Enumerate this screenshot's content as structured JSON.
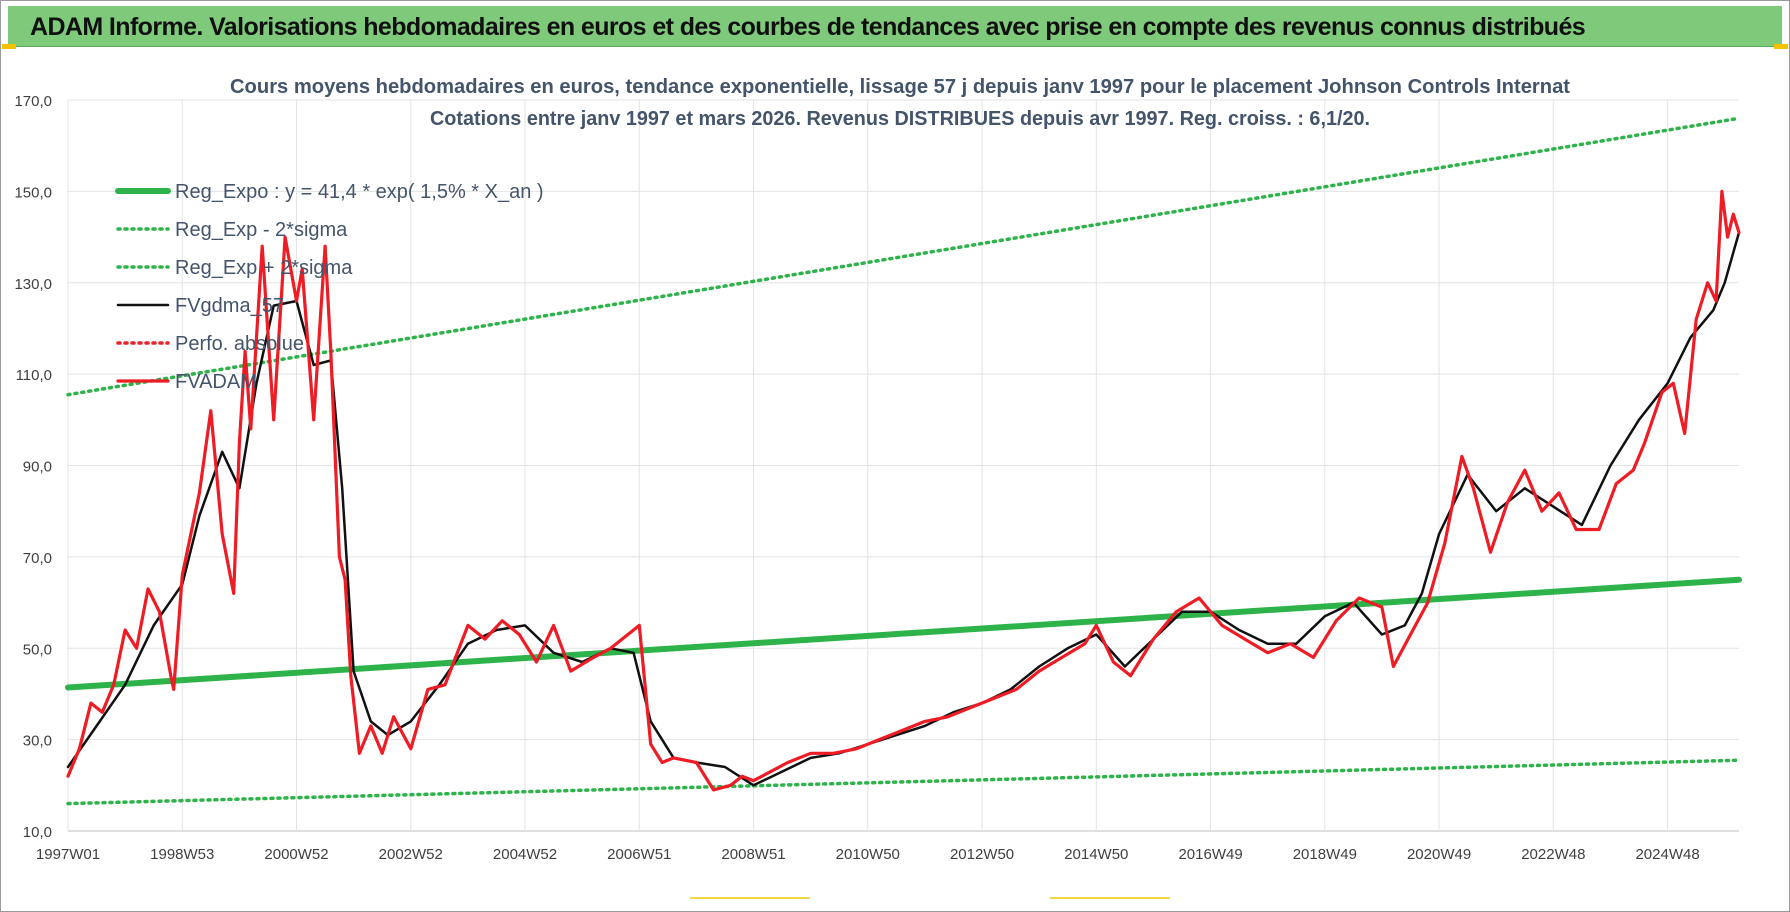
{
  "banner": {
    "title": "ADAM Informe. Valorisations hebdomadaires en euros et des courbes de tendances avec prise en compte des revenus connus distribués"
  },
  "chart_data": {
    "type": "line",
    "title": "Cours moyens hebdomadaires en euros, tendance exponentielle, lissage 57 j depuis janv 1997 pour le placement Johnson Controls Internat",
    "subtitle": "Cotations entre janv 1997 et mars 2026. Revenus DISTRIBUES depuis avr 1997. Reg. croiss. : 6,1/20.",
    "xlabel": "",
    "ylabel": "",
    "ylim": [
      10,
      170
    ],
    "xlim": [
      1997.0,
      2026.25
    ],
    "yticks": [
      "10,0",
      "30,0",
      "50,0",
      "70,0",
      "90,0",
      "110,0",
      "130,0",
      "150,0",
      "170,0"
    ],
    "xticks": [
      {
        "label": "1997W01",
        "x": 1997.0
      },
      {
        "label": "1998W53",
        "x": 1999.0
      },
      {
        "label": "2000W52",
        "x": 2001.0
      },
      {
        "label": "2002W52",
        "x": 2003.0
      },
      {
        "label": "2004W52",
        "x": 2005.0
      },
      {
        "label": "2006W51",
        "x": 2007.0
      },
      {
        "label": "2008W51",
        "x": 2009.0
      },
      {
        "label": "2010W50",
        "x": 2011.0
      },
      {
        "label": "2012W50",
        "x": 2013.0
      },
      {
        "label": "2014W50",
        "x": 2015.0
      },
      {
        "label": "2016W49",
        "x": 2017.0
      },
      {
        "label": "2018W49",
        "x": 2019.0
      },
      {
        "label": "2020W49",
        "x": 2021.0
      },
      {
        "label": "2022W48",
        "x": 2023.0
      },
      {
        "label": "2024W48",
        "x": 2025.0
      }
    ],
    "grid": true,
    "legend_position": "top-left",
    "series": [
      {
        "name": "Reg_Expo : y = 41,4 * exp( 1,5% *  X_an )",
        "color": "#2eb34a",
        "style": "solid-thick",
        "x": [
          1997.0,
          2026.25
        ],
        "y": [
          41.4,
          65.0
        ]
      },
      {
        "name": "Reg_Exp - 2*sigma",
        "color": "#2eb34a",
        "style": "dotted",
        "x": [
          1997.0,
          2026.25
        ],
        "y": [
          16.0,
          25.5
        ]
      },
      {
        "name": "Reg_Exp + 2*sigma",
        "color": "#2eb34a",
        "style": "dotted",
        "x": [
          1997.0,
          2026.25
        ],
        "y": [
          105.5,
          166.0
        ]
      },
      {
        "name": "FVgdma_57",
        "color": "#111111",
        "style": "solid",
        "x": [
          1997.0,
          1997.5,
          1998.0,
          1998.5,
          1999.0,
          1999.3,
          1999.7,
          2000.0,
          2000.3,
          2000.6,
          2001.0,
          2001.3,
          2001.6,
          2001.8,
          2002.0,
          2002.3,
          2002.6,
          2003.0,
          2003.5,
          2004.0,
          2004.5,
          2005.0,
          2005.5,
          2006.0,
          2006.5,
          2006.9,
          2007.2,
          2007.6,
          2008.0,
          2008.5,
          2009.0,
          2009.5,
          2010.0,
          2010.5,
          2011.0,
          2011.5,
          2012.0,
          2012.5,
          2013.0,
          2013.5,
          2014.0,
          2014.5,
          2015.0,
          2015.5,
          2016.0,
          2016.5,
          2017.0,
          2017.5,
          2018.0,
          2018.5,
          2019.0,
          2019.5,
          2020.0,
          2020.4,
          2020.7,
          2021.0,
          2021.5,
          2022.0,
          2022.5,
          2023.0,
          2023.5,
          2024.0,
          2024.5,
          2025.0,
          2025.4,
          2025.8,
          2026.0,
          2026.25
        ],
        "y": [
          24,
          33,
          42,
          55,
          64,
          79,
          93,
          85,
          108,
          125,
          126,
          112,
          113,
          85,
          45,
          34,
          31,
          34,
          42,
          51,
          54,
          55,
          49,
          47,
          50,
          49,
          34,
          26,
          25,
          24,
          20,
          23,
          26,
          27,
          29,
          31,
          33,
          36,
          38,
          41,
          46,
          50,
          53,
          46,
          52,
          58,
          58,
          54,
          51,
          51,
          57,
          60,
          53,
          55,
          62,
          75,
          88,
          80,
          85,
          81,
          77,
          90,
          100,
          108,
          118,
          124,
          130,
          141
        ]
      },
      {
        "name": "Perfo. absolue",
        "color": "#e8242a",
        "style": "dotted",
        "x": [],
        "y": []
      },
      {
        "name": "FVADAM",
        "color": "#ee1c25",
        "style": "solid-thick",
        "x": [
          1997.0,
          1997.2,
          1997.4,
          1997.6,
          1997.8,
          1998.0,
          1998.2,
          1998.4,
          1998.6,
          1998.8,
          1998.85,
          1999.0,
          1999.3,
          1999.5,
          1999.7,
          1999.9,
          2000.0,
          2000.1,
          2000.2,
          2000.4,
          2000.6,
          2000.8,
          2001.0,
          2001.1,
          2001.3,
          2001.5,
          2001.6,
          2001.75,
          2001.85,
          2001.95,
          2002.1,
          2002.3,
          2002.5,
          2002.7,
          2003.0,
          2003.3,
          2003.6,
          2004.0,
          2004.3,
          2004.6,
          2004.9,
          2005.2,
          2005.5,
          2005.8,
          2006.2,
          2006.5,
          2006.8,
          2007.0,
          2007.2,
          2007.4,
          2007.6,
          2008.0,
          2008.3,
          2008.6,
          2008.8,
          2009.0,
          2009.3,
          2009.6,
          2010.0,
          2010.4,
          2010.8,
          2011.2,
          2011.6,
          2012.0,
          2012.4,
          2012.8,
          2013.2,
          2013.6,
          2014.0,
          2014.4,
          2014.8,
          2015.0,
          2015.3,
          2015.6,
          2016.0,
          2016.4,
          2016.8,
          2017.2,
          2017.6,
          2018.0,
          2018.4,
          2018.8,
          2019.2,
          2019.6,
          2020.0,
          2020.2,
          2020.5,
          2020.8,
          2021.1,
          2021.4,
          2021.6,
          2021.9,
          2022.2,
          2022.5,
          2022.8,
          2023.1,
          2023.4,
          2023.8,
          2024.1,
          2024.4,
          2024.6,
          2024.9,
          2025.1,
          2025.3,
          2025.5,
          2025.7,
          2025.85,
          2025.95,
          2026.05,
          2026.15,
          2026.25
        ],
        "y": [
          22,
          28,
          38,
          36,
          42,
          54,
          50,
          63,
          58,
          44,
          41,
          66,
          84,
          102,
          75,
          62,
          95,
          115,
          98,
          138,
          100,
          140,
          126,
          133,
          100,
          138,
          115,
          70,
          65,
          44,
          27,
          33,
          27,
          35,
          28,
          41,
          42,
          55,
          52,
          56,
          53,
          47,
          55,
          45,
          48,
          50,
          53,
          55,
          29,
          25,
          26,
          25,
          19,
          20,
          22,
          21,
          23,
          25,
          27,
          27,
          28,
          30,
          32,
          34,
          35,
          37,
          39,
          41,
          45,
          48,
          51,
          55,
          47,
          44,
          52,
          58,
          61,
          55,
          52,
          49,
          51,
          48,
          56,
          61,
          59,
          46,
          53,
          60,
          73,
          92,
          85,
          71,
          82,
          89,
          80,
          84,
          76,
          76,
          86,
          89,
          95,
          106,
          108,
          97,
          122,
          130,
          126,
          150,
          140,
          145,
          141
        ]
      }
    ]
  }
}
